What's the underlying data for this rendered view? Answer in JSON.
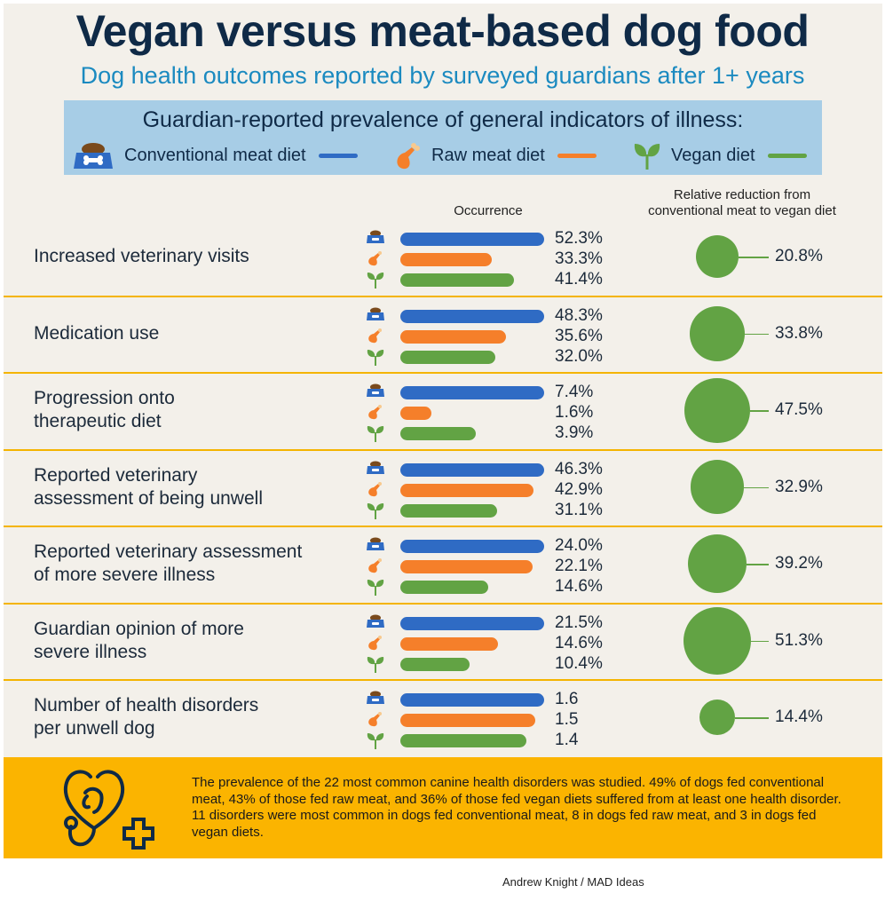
{
  "title": "Vegan versus meat-based dog food",
  "subtitle": "Dog health outcomes reported by surveyed guardians after 1+ years",
  "legend": {
    "title": "Guardian-reported prevalence of general indicators of illness:",
    "items": [
      {
        "label": "Conventional meat diet",
        "icon": "dog-bowl-icon",
        "color": "#2f6bc4"
      },
      {
        "label": "Raw meat diet",
        "icon": "chicken-leg-icon",
        "color": "#f57f2a"
      },
      {
        "label": "Vegan diet",
        "icon": "sprout-icon",
        "color": "#62a344"
      }
    ]
  },
  "column_headers": {
    "occurrence": "Occurrence",
    "reduction_line1": "Relative reduction from",
    "reduction_line2": "conventional meat to vegan diet"
  },
  "chart_data": {
    "type": "bar",
    "title": "Guardian-reported prevalence of general indicators of illness",
    "series_names": [
      "Conventional meat diet",
      "Raw meat diet",
      "Vegan diet"
    ],
    "colors": [
      "#2f6bc4",
      "#f57f2a",
      "#62a344"
    ],
    "categories": [
      {
        "label_lines": [
          "Increased veterinary visits"
        ],
        "values": [
          52.3,
          33.3,
          41.4
        ],
        "value_labels": [
          "52.3%",
          "33.3%",
          "41.4%"
        ],
        "reduction": 20.8,
        "reduction_label": "20.8%"
      },
      {
        "label_lines": [
          "Medication use"
        ],
        "values": [
          48.3,
          35.6,
          32.0
        ],
        "value_labels": [
          "48.3%",
          "35.6%",
          "32.0%"
        ],
        "reduction": 33.8,
        "reduction_label": "33.8%"
      },
      {
        "label_lines": [
          "Progression onto",
          "therapeutic diet"
        ],
        "values": [
          7.4,
          1.6,
          3.9
        ],
        "value_labels": [
          "7.4%",
          "1.6%",
          "3.9%"
        ],
        "reduction": 47.5,
        "reduction_label": "47.5%"
      },
      {
        "label_lines": [
          "Reported veterinary",
          "assessment of being unwell"
        ],
        "values": [
          46.3,
          42.9,
          31.1
        ],
        "value_labels": [
          "46.3%",
          "42.9%",
          "31.1%"
        ],
        "reduction": 32.9,
        "reduction_label": "32.9%"
      },
      {
        "label_lines": [
          "Reported veterinary assessment",
          "of more severe illness"
        ],
        "values": [
          24.0,
          22.1,
          14.6
        ],
        "value_labels": [
          "24.0%",
          "22.1%",
          "14.6%"
        ],
        "reduction": 39.2,
        "reduction_label": "39.2%"
      },
      {
        "label_lines": [
          "Guardian opinion of more",
          "severe illness"
        ],
        "values": [
          21.5,
          14.6,
          10.4
        ],
        "value_labels": [
          "21.5%",
          "14.6%",
          "10.4%"
        ],
        "reduction": 51.3,
        "reduction_label": "51.3%"
      },
      {
        "label_lines": [
          "Number of health disorders",
          "per unwell dog"
        ],
        "values": [
          1.6,
          1.5,
          1.4
        ],
        "value_labels": [
          "1.6",
          "1.5",
          "1.4"
        ],
        "reduction": 14.4,
        "reduction_label": "14.4%"
      }
    ],
    "bar_scaling": "each row normalized to conventional meat value",
    "reduction_encoding": "circle area"
  },
  "footer": {
    "text": "The prevalence of the 22 most common canine health disorders was studied. 49% of dogs fed conventional meat, 43% of those fed raw meat, and 36% of those fed vegan diets suffered from at least one health disorder. 11 disorders were most common in dogs fed conventional meat, 8 in dogs fed raw meat, and 3 in dogs fed vegan diets."
  },
  "credit": "Andrew Knight / MAD Ideas"
}
